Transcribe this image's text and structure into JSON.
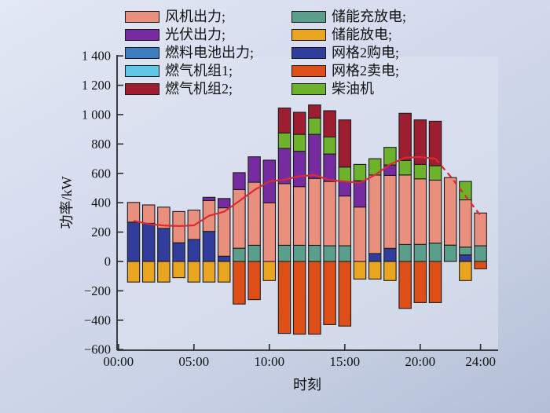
{
  "chart_data": {
    "type": "bar",
    "subtype": "stacked-bar-with-line",
    "xlabel": "时刻",
    "ylabel": "功率/kW",
    "ylim": [
      -600,
      1400
    ],
    "xlim_hours": [
      0,
      24
    ],
    "grid": false,
    "legend_position": "top-inside-two-columns",
    "yticks": [
      {
        "value": 1400,
        "label": "1 400"
      },
      {
        "value": 1200,
        "label": "1 200"
      },
      {
        "value": 1000,
        "label": "1 000"
      },
      {
        "value": 800,
        "label": "800"
      },
      {
        "value": 600,
        "label": "600"
      },
      {
        "value": 400,
        "label": "400"
      },
      {
        "value": 200,
        "label": "200"
      },
      {
        "value": 0,
        "label": "0"
      },
      {
        "value": -200,
        "label": "−200"
      },
      {
        "value": -400,
        "label": "−400"
      },
      {
        "value": -600,
        "label": "−600"
      }
    ],
    "xticks": [
      {
        "value": 0,
        "label": "00:00"
      },
      {
        "value": 5,
        "label": "05:00"
      },
      {
        "value": 10,
        "label": "10:00"
      },
      {
        "value": 15,
        "label": "15:00"
      },
      {
        "value": 20,
        "label": "20:00"
      },
      {
        "value": 24,
        "label": "24:00"
      }
    ],
    "hours": [
      1,
      2,
      3,
      4,
      5,
      6,
      7,
      8,
      9,
      10,
      11,
      12,
      13,
      14,
      15,
      16,
      17,
      18,
      19,
      20,
      21,
      22,
      23,
      24
    ],
    "series": [
      {
        "name": "网格2购电",
        "color": "#313D9C",
        "values": [
          268,
          260,
          225,
          127,
          150,
          205,
          36,
          0,
          0,
          0,
          0,
          0,
          0,
          0,
          0,
          0,
          54,
          89,
          0,
          0,
          0,
          0,
          45,
          0
        ]
      },
      {
        "name": "储能充放电",
        "color": "#5C9E8C",
        "values": [
          0,
          0,
          0,
          0,
          0,
          0,
          0,
          90,
          110,
          0,
          110,
          110,
          110,
          107,
          107,
          0,
          0,
          0,
          116,
          116,
          125,
          111,
          53,
          107
        ]
      },
      {
        "name": "风机出力",
        "color": "#E98F7E",
        "values": [
          134,
          125,
          145,
          213,
          200,
          210,
          330,
          400,
          430,
          400,
          420,
          400,
          456,
          438,
          339,
          371,
          535,
          497,
          473,
          447,
          429,
          460,
          322,
          223
        ]
      },
      {
        "name": "光伏出力",
        "color": "#762CA0",
        "values": [
          0,
          0,
          0,
          0,
          0,
          22,
          63,
          115,
          173,
          290,
          240,
          241,
          300,
          187,
          99,
          179,
          0,
          71,
          0,
          0,
          0,
          0,
          0,
          0
        ]
      },
      {
        "name": "柴油机",
        "color": "#6CB32B",
        "values": [
          0,
          0,
          0,
          0,
          0,
          0,
          0,
          0,
          0,
          0,
          105,
          115,
          111,
          116,
          98,
          111,
          111,
          120,
          99,
          98,
          98,
          0,
          125,
          0
        ]
      },
      {
        "name": "燃气机组2",
        "color": "#9E1D31",
        "values": [
          0,
          0,
          0,
          0,
          0,
          0,
          0,
          0,
          0,
          0,
          170,
          150,
          89,
          179,
          321,
          0,
          0,
          0,
          321,
          303,
          303,
          0,
          0,
          0
        ]
      },
      {
        "name": "燃料电池出力",
        "color": "#3C7EC0",
        "values": [
          0,
          0,
          0,
          0,
          0,
          0,
          0,
          0,
          0,
          0,
          0,
          0,
          0,
          0,
          0,
          0,
          0,
          0,
          0,
          0,
          0,
          0,
          0,
          0
        ]
      },
      {
        "name": "燃气机组1",
        "color": "#5FC8E8",
        "values": [
          0,
          0,
          0,
          0,
          0,
          0,
          0,
          0,
          0,
          0,
          0,
          0,
          0,
          0,
          0,
          0,
          0,
          0,
          0,
          0,
          0,
          0,
          0,
          0
        ]
      },
      {
        "name": "储能放电",
        "color": "#E9A51F",
        "values": [
          -140,
          -140,
          -140,
          -110,
          -140,
          -140,
          -140,
          0,
          0,
          -130,
          0,
          0,
          0,
          0,
          0,
          -120,
          -120,
          -130,
          0,
          0,
          0,
          0,
          -130,
          0
        ]
      },
      {
        "name": "网格2卖电",
        "color": "#DE4E17",
        "values": [
          0,
          0,
          0,
          0,
          0,
          0,
          0,
          -290,
          -260,
          0,
          -490,
          -495,
          -495,
          -430,
          -440,
          0,
          0,
          0,
          -320,
          -280,
          -280,
          0,
          0,
          -50
        ]
      }
    ],
    "line": {
      "color": "#DB2A31",
      "dashed_from_hour": 21,
      "values": [
        277,
        255,
        245,
        241,
        246,
        311,
        339,
        411,
        486,
        545,
        557,
        580,
        589,
        554,
        545,
        536,
        589,
        661,
        707,
        711,
        700,
        580,
        446,
        313
      ]
    },
    "legend": {
      "left": [
        {
          "label": "风机出力;",
          "color": "#E98F7E"
        },
        {
          "label": "光伏出力;",
          "color": "#762CA0"
        },
        {
          "label": "燃料电池出力;",
          "color": "#3C7EC0"
        },
        {
          "label": "燃气机组1;",
          "color": "#5FC8E8"
        },
        {
          "label": "燃气机组2;",
          "color": "#9E1D31"
        }
      ],
      "right": [
        {
          "label": "储能充放电;",
          "color": "#5C9E8C"
        },
        {
          "label": "储能放电;",
          "color": "#E9A51F"
        },
        {
          "label": "网格2购电;",
          "color": "#313D9C"
        },
        {
          "label": "网格2卖电;",
          "color": "#DE4E17"
        },
        {
          "label": "柴油机",
          "color": "#6CB32B"
        }
      ]
    }
  }
}
